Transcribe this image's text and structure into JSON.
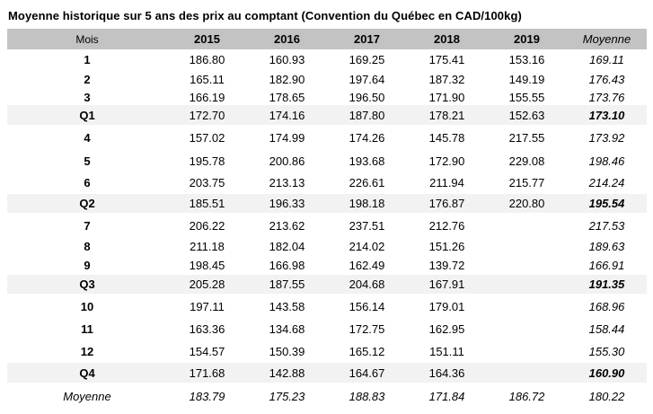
{
  "title": "Moyenne historique sur 5 ans des prix au comptant (Convention du Québec en CAD/100kg)",
  "colors": {
    "header_bg": "#c3c3c3",
    "quarter_row_bg": "#f2f2f2",
    "text": "#000000",
    "background": "#ffffff"
  },
  "table": {
    "columns": [
      "Mois",
      "2015",
      "2016",
      "2017",
      "2018",
      "2019",
      "Moyenne"
    ],
    "rows": [
      {
        "type": "month",
        "label": "1",
        "values": [
          "186.80",
          "160.93",
          "169.25",
          "175.41",
          "153.16"
        ],
        "avg": "169.11"
      },
      {
        "type": "month",
        "label": "2",
        "values": [
          "165.11",
          "182.90",
          "197.64",
          "187.32",
          "149.19"
        ],
        "avg": "176.43"
      },
      {
        "type": "month",
        "label": "3",
        "values": [
          "166.19",
          "178.65",
          "196.50",
          "171.90",
          "155.55"
        ],
        "avg": "173.76"
      },
      {
        "type": "quarter",
        "label": "Q1",
        "values": [
          "172.70",
          "174.16",
          "187.80",
          "178.21",
          "152.63"
        ],
        "avg": "173.10"
      },
      {
        "type": "month",
        "label": "4",
        "values": [
          "157.02",
          "174.99",
          "174.26",
          "145.78",
          "217.55"
        ],
        "avg": "173.92"
      },
      {
        "type": "month",
        "label": "5",
        "values": [
          "195.78",
          "200.86",
          "193.68",
          "172.90",
          "229.08"
        ],
        "avg": "198.46"
      },
      {
        "type": "month",
        "label": "6",
        "values": [
          "203.75",
          "213.13",
          "226.61",
          "211.94",
          "215.77"
        ],
        "avg": "214.24"
      },
      {
        "type": "quarter",
        "label": "Q2",
        "values": [
          "185.51",
          "196.33",
          "198.18",
          "176.87",
          "220.80"
        ],
        "avg": "195.54"
      },
      {
        "type": "month",
        "label": "7",
        "values": [
          "206.22",
          "213.62",
          "237.51",
          "212.76",
          ""
        ],
        "avg": "217.53"
      },
      {
        "type": "month",
        "label": "8",
        "values": [
          "211.18",
          "182.04",
          "214.02",
          "151.26",
          ""
        ],
        "avg": "189.63"
      },
      {
        "type": "month",
        "label": "9",
        "values": [
          "198.45",
          "166.98",
          "162.49",
          "139.72",
          ""
        ],
        "avg": "166.91"
      },
      {
        "type": "quarter",
        "label": "Q3",
        "values": [
          "205.28",
          "187.55",
          "204.68",
          "167.91",
          ""
        ],
        "avg": "191.35"
      },
      {
        "type": "month",
        "label": "10",
        "values": [
          "197.11",
          "143.58",
          "156.14",
          "179.01",
          ""
        ],
        "avg": "168.96"
      },
      {
        "type": "month",
        "label": "11",
        "values": [
          "163.36",
          "134.68",
          "172.75",
          "162.95",
          ""
        ],
        "avg": "158.44"
      },
      {
        "type": "month",
        "label": "12",
        "values": [
          "154.57",
          "150.39",
          "165.12",
          "151.11",
          ""
        ],
        "avg": "155.30"
      },
      {
        "type": "quarter",
        "label": "Q4",
        "values": [
          "171.68",
          "142.88",
          "164.67",
          "164.36",
          ""
        ],
        "avg": "160.90"
      },
      {
        "type": "grand",
        "label": "Moyenne",
        "values": [
          "183.79",
          "175.23",
          "188.83",
          "171.84",
          "186.72"
        ],
        "avg": "180.22"
      }
    ]
  }
}
